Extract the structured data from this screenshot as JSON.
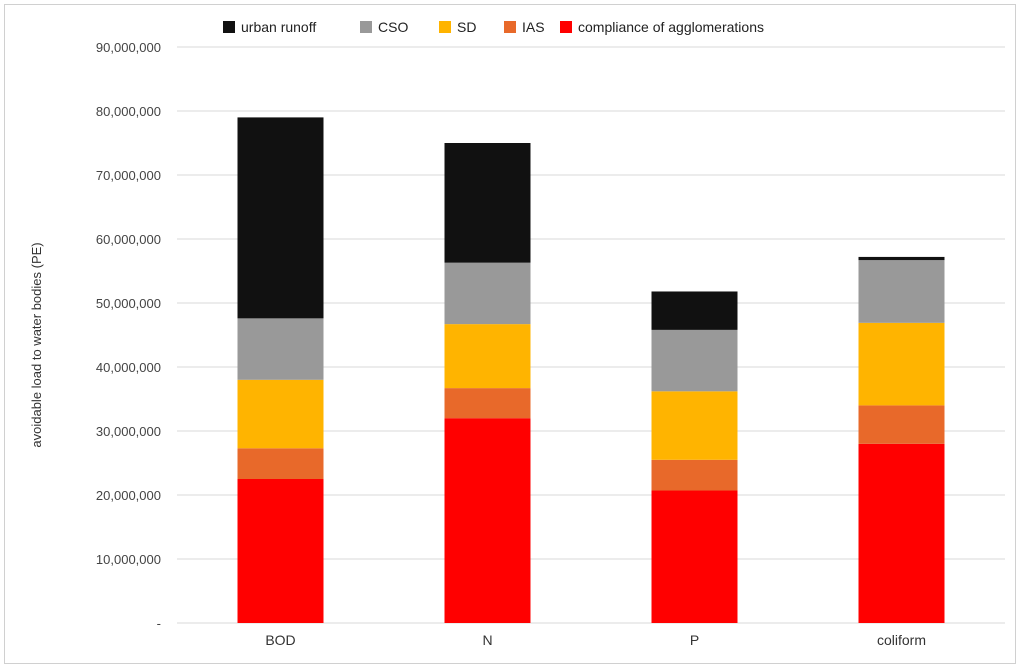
{
  "chart_data": {
    "type": "bar",
    "stacked": true,
    "categories": [
      "BOD",
      "N",
      "P",
      "coliform"
    ],
    "series": [
      {
        "name": "compliance of agglomerations",
        "color": "#ff0000",
        "values": [
          22500000,
          32000000,
          20700000,
          28000000
        ]
      },
      {
        "name": "IAS",
        "color": "#e8692a",
        "values": [
          4800000,
          4700000,
          4800000,
          6000000
        ]
      },
      {
        "name": "SD",
        "color": "#ffb400",
        "values": [
          10700000,
          10000000,
          10700000,
          12900000
        ]
      },
      {
        "name": "CSO",
        "color": "#999999",
        "values": [
          9600000,
          9600000,
          9600000,
          9800000
        ]
      },
      {
        "name": "urban runoff",
        "color": "#111111",
        "values": [
          31400000,
          18700000,
          6000000,
          500000
        ]
      }
    ],
    "legend_order": [
      "urban runoff",
      "CSO",
      "SD",
      "IAS",
      "compliance of agglomerations"
    ],
    "legend_position": "top",
    "ylabel": "avoidable load to water bodies (PE)",
    "xlabel": "",
    "ylim": [
      0,
      90000000
    ],
    "yticks": [
      0,
      10000000,
      20000000,
      30000000,
      40000000,
      50000000,
      60000000,
      70000000,
      80000000,
      90000000
    ],
    "ytick_labels": [
      "-",
      "10,000,000",
      "20,000,000",
      "30,000,000",
      "40,000,000",
      "50,000,000",
      "60,000,000",
      "70,000,000",
      "80,000,000",
      "90,000,000"
    ],
    "grid": true
  }
}
